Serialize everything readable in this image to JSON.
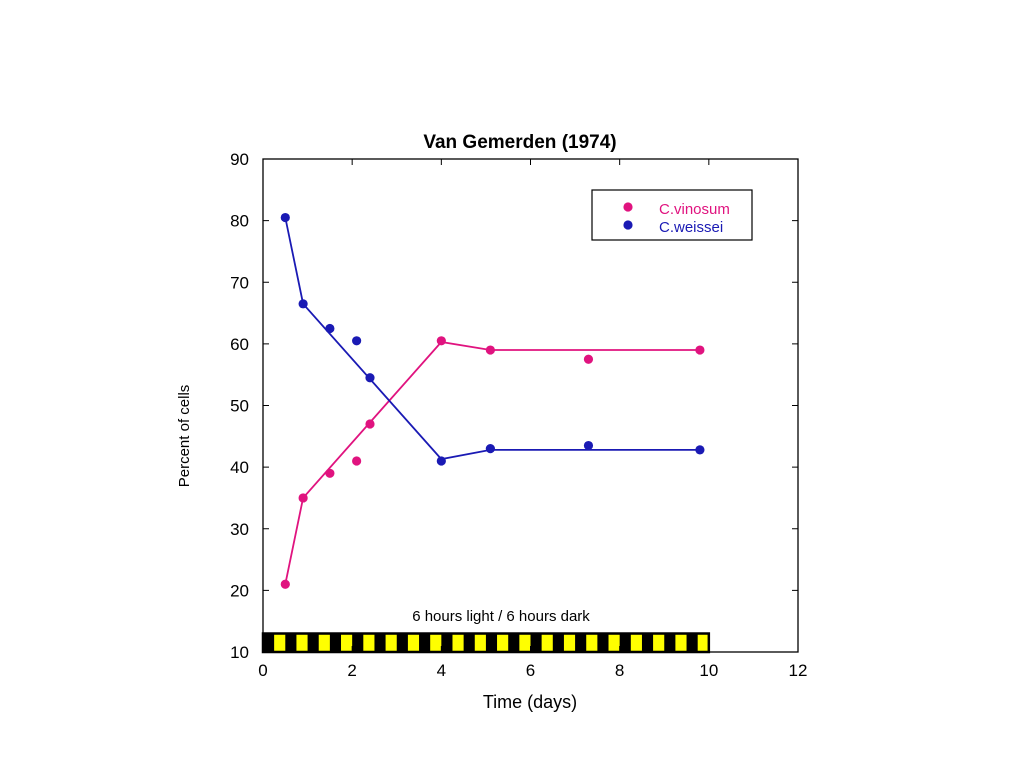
{
  "chart_data": {
    "type": "scatter",
    "title": "Van Gemerden (1974)",
    "xlabel": "Time (days)",
    "ylabel": "Percent of cells",
    "xlim": [
      0,
      12
    ],
    "ylim": [
      10,
      90
    ],
    "xticks": [
      0,
      2,
      4,
      6,
      8,
      10,
      12
    ],
    "yticks": [
      10,
      20,
      30,
      40,
      50,
      60,
      70,
      80,
      90
    ],
    "grid": false,
    "legend_position": "top-right",
    "series": [
      {
        "name": "C.vinosum",
        "color": "#e0137f",
        "points": [
          {
            "x": 0.5,
            "y": 21
          },
          {
            "x": 0.9,
            "y": 35
          },
          {
            "x": 1.5,
            "y": 39
          },
          {
            "x": 2.1,
            "y": 41
          },
          {
            "x": 2.4,
            "y": 47
          },
          {
            "x": 4.0,
            "y": 60.5
          },
          {
            "x": 5.1,
            "y": 59
          },
          {
            "x": 7.3,
            "y": 57.5
          },
          {
            "x": 9.8,
            "y": 59
          }
        ],
        "line": [
          {
            "x": 0.5,
            "y": 21
          },
          {
            "x": 0.9,
            "y": 35
          },
          {
            "x": 4.0,
            "y": 60.3
          },
          {
            "x": 5.1,
            "y": 59
          },
          {
            "x": 9.8,
            "y": 59
          }
        ]
      },
      {
        "name": "C.weissei",
        "color": "#1a1ab4",
        "points": [
          {
            "x": 0.5,
            "y": 80.5
          },
          {
            "x": 0.9,
            "y": 66.5
          },
          {
            "x": 1.5,
            "y": 62.5
          },
          {
            "x": 2.1,
            "y": 60.5
          },
          {
            "x": 2.4,
            "y": 54.5
          },
          {
            "x": 4.0,
            "y": 41
          },
          {
            "x": 5.1,
            "y": 43
          },
          {
            "x": 7.3,
            "y": 43.5
          },
          {
            "x": 9.8,
            "y": 42.8
          }
        ],
        "line": [
          {
            "x": 0.5,
            "y": 80.5
          },
          {
            "x": 0.9,
            "y": 66.5
          },
          {
            "x": 4.0,
            "y": 41.3
          },
          {
            "x": 5.1,
            "y": 42.8
          },
          {
            "x": 9.8,
            "y": 42.8
          }
        ]
      }
    ],
    "annotation": {
      "text": "6 hours light / 6 hours dark",
      "bar": {
        "x_start": 0,
        "x_end": 10,
        "y_bottom": 10,
        "y_top": 13,
        "segments": 40,
        "light_color": "#ffff00",
        "dark_color": "#000000"
      }
    }
  }
}
